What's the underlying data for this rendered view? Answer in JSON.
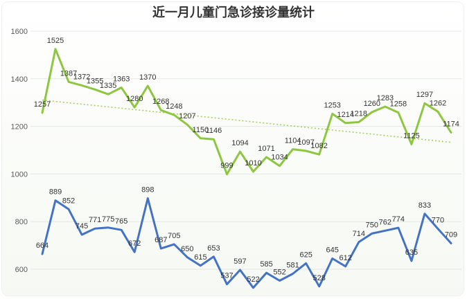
{
  "chart_data": {
    "type": "line",
    "title": "近一月儿童门急诊接诊量统计",
    "xlabel": "",
    "ylabel": "",
    "ylim": [
      540,
      1600
    ],
    "y_ticks": [
      600,
      800,
      1000,
      1200,
      1400,
      1600
    ],
    "grid": true,
    "legend": "none",
    "series": [
      {
        "color": "#8dc63f",
        "values": [
          1257,
          1525,
          1387,
          1372,
          1355,
          1335,
          1363,
          1280,
          1370,
          1268,
          1248,
          1207,
          1150,
          1146,
          999,
          1094,
          1010,
          1071,
          1034,
          1104,
          1097,
          1082,
          1253,
          1214,
          1218,
          1260,
          1283,
          1258,
          1125,
          1297,
          1262,
          1174
        ]
      },
      {
        "color": "#4472c4",
        "values": [
          664,
          889,
          852,
          745,
          771,
          775,
          765,
          672,
          898,
          687,
          705,
          650,
          615,
          653,
          537,
          597,
          522,
          585,
          552,
          581,
          625,
          528,
          645,
          612,
          714,
          750,
          762,
          774,
          635,
          833,
          770,
          709
        ]
      }
    ],
    "trendline": {
      "series_index": 0,
      "style": "dotted",
      "color": "#9fd05a"
    }
  }
}
